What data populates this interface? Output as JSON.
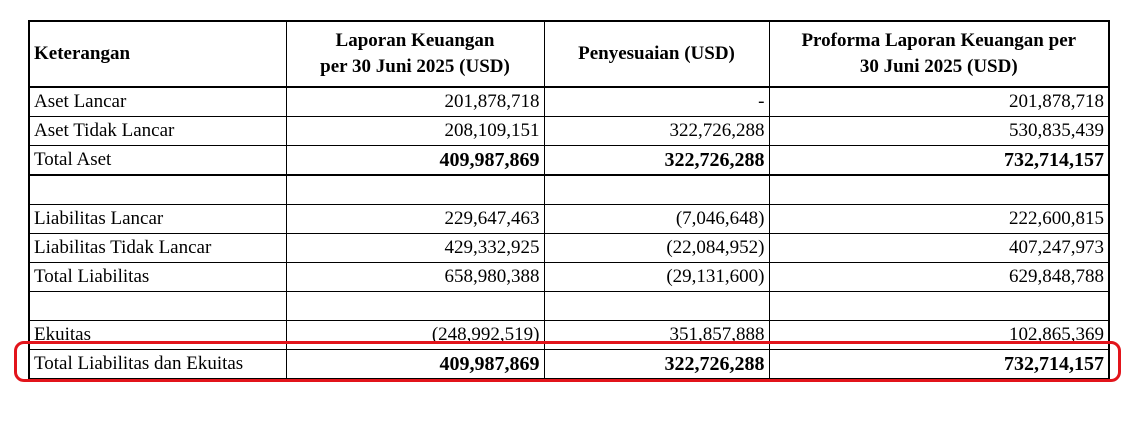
{
  "table": {
    "headers": {
      "col1": "Keterangan",
      "col2_line1": "Laporan Keuangan",
      "col2_line2": "per 30 Juni 2025 (USD)",
      "col3": "Penyesuaian (USD)",
      "col4_line1": "Proforma Laporan Keuangan per",
      "col4_line2": "30 Juni 2025 (USD)"
    },
    "rows": [
      {
        "label": "Aset Lancar",
        "a": "201,878,718",
        "b": "-",
        "c": "201,878,718"
      },
      {
        "label": "Aset Tidak Lancar",
        "a": "208,109,151",
        "b": "322,726,288",
        "c": "530,835,439"
      },
      {
        "label": "Total Aset",
        "a": "409,987,869",
        "b": "322,726,288",
        "c": "732,714,157"
      },
      {
        "label": "",
        "a": "",
        "b": "",
        "c": ""
      },
      {
        "label": "Liabilitas Lancar",
        "a": "229,647,463",
        "b": "(7,046,648)",
        "c": "222,600,815"
      },
      {
        "label": "Liabilitas Tidak Lancar",
        "a": "429,332,925",
        "b": "(22,084,952)",
        "c": "407,247,973"
      },
      {
        "label": "Total Liabilitas",
        "a": "658,980,388",
        "b": "(29,131,600)",
        "c": "629,848,788"
      },
      {
        "label": "",
        "a": "",
        "b": "",
        "c": ""
      },
      {
        "label": "Ekuitas",
        "a": "(248,992,519)",
        "b": "351,857,888",
        "c": "102,865,369"
      },
      {
        "label": "Total Liabilitas dan Ekuitas",
        "a": "409,987,869",
        "b": "322,726,288",
        "c": "732,714,157"
      }
    ]
  },
  "highlight_color": "#e2141b"
}
